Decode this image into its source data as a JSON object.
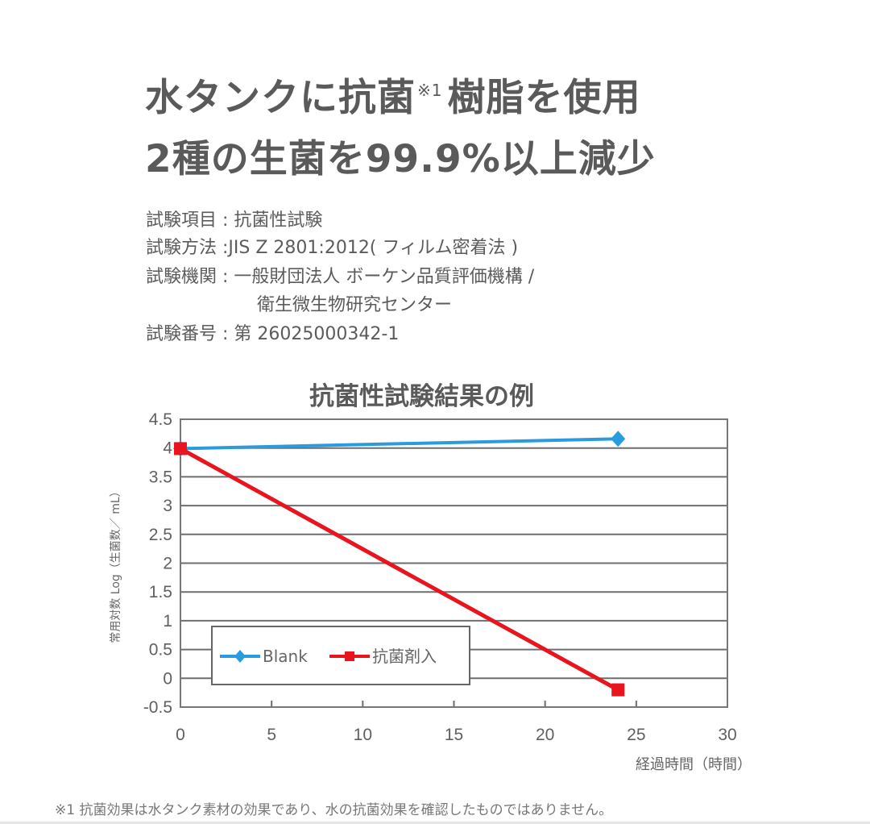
{
  "headline": {
    "line1_before": "水タンクに抗菌",
    "line1_note": "※1",
    "line1_after": "樹脂を使用",
    "line2": "2種の生菌を99.9%以上減少"
  },
  "test_info": [
    {
      "label": "試験項目",
      "sep": " : ",
      "value": "抗菌性試験"
    },
    {
      "label": "試験方法",
      "sep": " :",
      "value": "JIS Z 2801:2012( フィルム密着法 )"
    },
    {
      "label": "試験機関",
      "sep": " : ",
      "value": "一般財団法人 ボーケン品質評価機構 /"
    },
    {
      "label": "",
      "sep": "",
      "value": "衛生微生物研究センター"
    },
    {
      "label": "試験番号",
      "sep": " : ",
      "value": "第 26025000342-1"
    }
  ],
  "chart_data": {
    "type": "line",
    "title": "抗菌性試験結果の例",
    "xlabel": "経過時間（時間）",
    "ylabel": "常用対数 Log（生菌数／ mL）",
    "xlim": [
      0,
      30
    ],
    "ylim": [
      -0.5,
      4.5
    ],
    "x_ticks": [
      "0",
      "5",
      "10",
      "15",
      "20",
      "25",
      "30"
    ],
    "y_ticks": [
      "4.5",
      "4",
      "3.5",
      "3",
      "2.5",
      "2",
      "1.5",
      "1",
      "0.5",
      "0",
      "-0.5"
    ],
    "grid": "horizontal",
    "legend_position": "inside lower-left",
    "series": [
      {
        "name": "Blank",
        "color": "#2b9be0",
        "marker": "diamond",
        "x": [
          0,
          24
        ],
        "y": [
          3.99,
          4.16
        ]
      },
      {
        "name": "抗菌剤入",
        "color": "#e8141e",
        "marker": "square",
        "x": [
          0,
          24
        ],
        "y": [
          3.99,
          -0.2
        ]
      }
    ]
  },
  "footnote": "※1 抗菌効果は水タンク素材の効果であり、水の抗菌効果を確認したものではありません。"
}
